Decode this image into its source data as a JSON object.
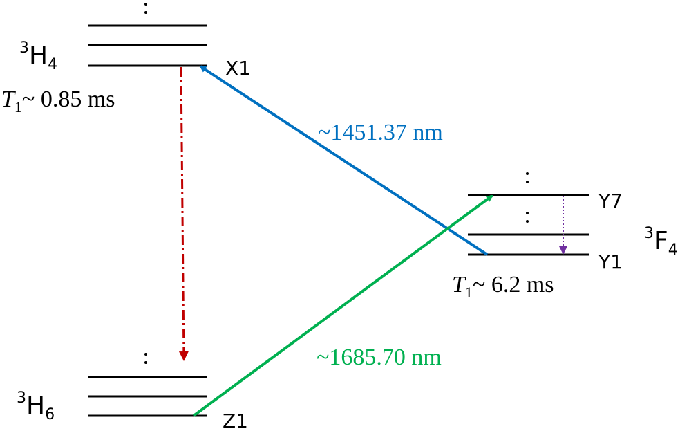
{
  "levels": [
    {
      "term": {
        "sup": "3",
        "letter": "H",
        "sub": "4"
      },
      "sublevels": [
        "X1"
      ],
      "lifetime": {
        "symbol": "T",
        "symbol_sub": "1",
        "value": "~ 0.85 ms"
      }
    },
    {
      "term": {
        "sup": "3",
        "letter": "F",
        "sub": "4"
      },
      "sublevels": [
        "Y7",
        "Y1"
      ],
      "lifetime": {
        "symbol": "T",
        "symbol_sub": "1",
        "value": "~ 6.2 ms"
      }
    },
    {
      "term": {
        "sup": "3",
        "letter": "H",
        "sub": "6"
      },
      "sublevels": [
        "Z1"
      ]
    }
  ],
  "transitions": [
    {
      "label": "~1451.37 nm"
    },
    {
      "label": "~1685.70 nm"
    }
  ]
}
